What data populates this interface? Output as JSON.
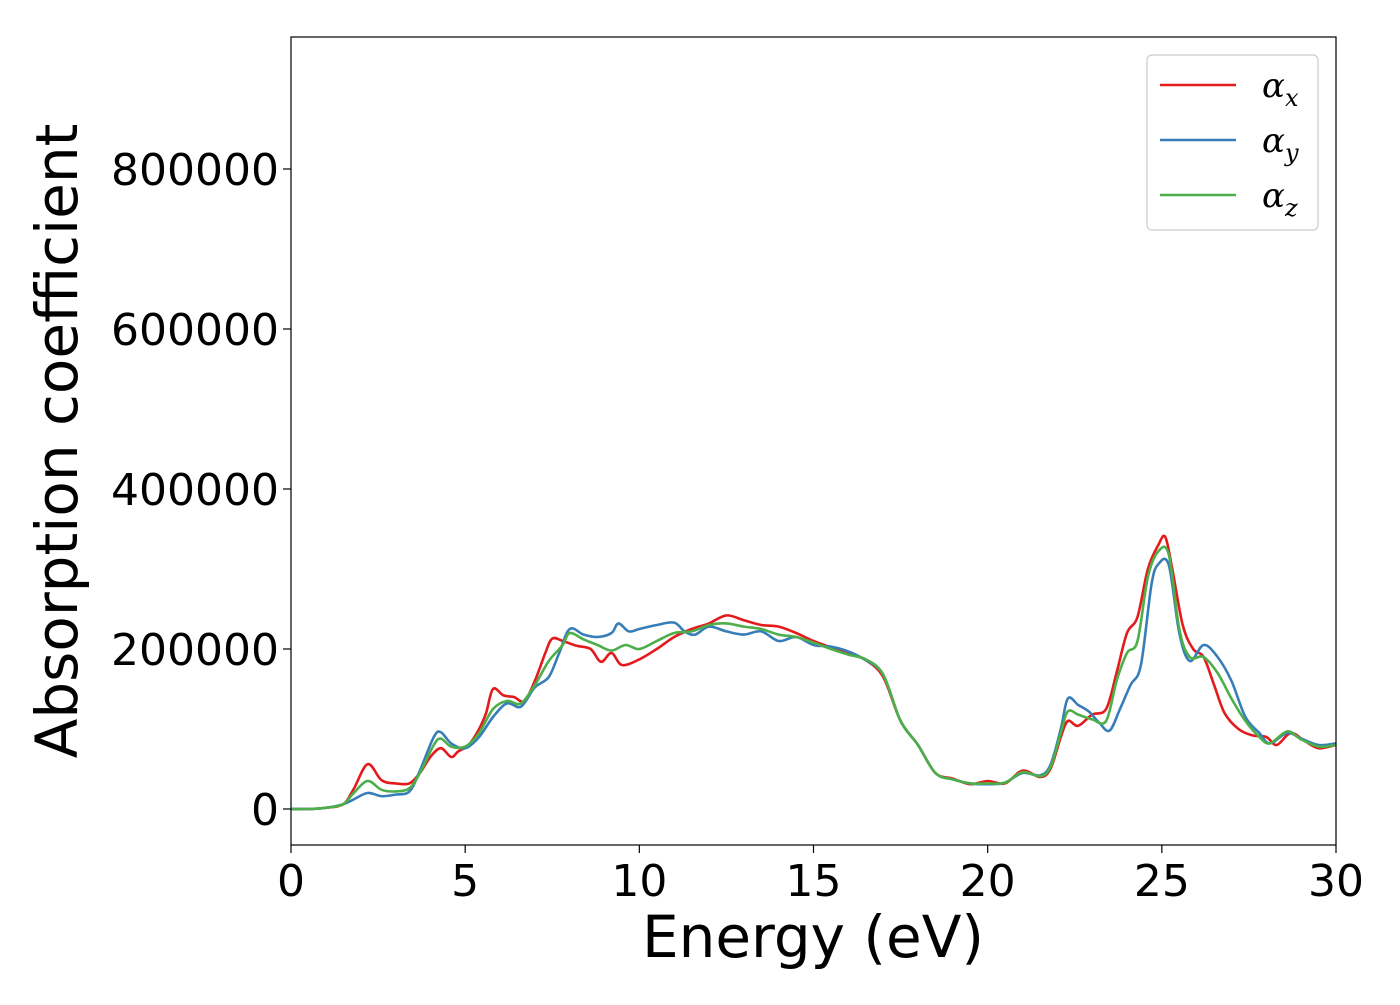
{
  "chart_data": {
    "type": "line",
    "xlabel": "Energy (eV)",
    "ylabel": "Absorption coefficient",
    "xlim": [
      0,
      30
    ],
    "ylim": [
      -45000,
      965000
    ],
    "xticks": [
      0,
      5,
      10,
      15,
      20,
      25,
      30
    ],
    "yticks": [
      0,
      200000,
      400000,
      600000,
      800000
    ],
    "grid": false,
    "legend_position": "top-right",
    "series": [
      {
        "name": "αx",
        "symbol": "α",
        "subscript": "x",
        "color": "#e41a1c",
        "points": [
          [
            0,
            0
          ],
          [
            0.5,
            0
          ],
          [
            1,
            1500
          ],
          [
            1.5,
            6000
          ],
          [
            1.8,
            25000
          ],
          [
            2.2,
            56000
          ],
          [
            2.6,
            36000
          ],
          [
            3,
            32000
          ],
          [
            3.4,
            32000
          ],
          [
            3.7,
            45000
          ],
          [
            4,
            65000
          ],
          [
            4.3,
            76000
          ],
          [
            4.6,
            65000
          ],
          [
            4.8,
            72000
          ],
          [
            5.1,
            80000
          ],
          [
            5.4,
            100000
          ],
          [
            5.6,
            120000
          ],
          [
            5.8,
            150000
          ],
          [
            6.1,
            142000
          ],
          [
            6.4,
            140000
          ],
          [
            6.7,
            135000
          ],
          [
            7,
            160000
          ],
          [
            7.3,
            195000
          ],
          [
            7.5,
            213000
          ],
          [
            7.8,
            210000
          ],
          [
            8.2,
            204000
          ],
          [
            8.6,
            200000
          ],
          [
            8.9,
            184000
          ],
          [
            9.2,
            195000
          ],
          [
            9.5,
            180000
          ],
          [
            10,
            187000
          ],
          [
            10.5,
            200000
          ],
          [
            11,
            215000
          ],
          [
            11.5,
            225000
          ],
          [
            12,
            232000
          ],
          [
            12.5,
            242000
          ],
          [
            13,
            236000
          ],
          [
            13.5,
            230000
          ],
          [
            14,
            228000
          ],
          [
            14.5,
            220000
          ],
          [
            15,
            210000
          ],
          [
            15.5,
            202000
          ],
          [
            16,
            195000
          ],
          [
            16.5,
            186000
          ],
          [
            17,
            165000
          ],
          [
            17.5,
            110000
          ],
          [
            18,
            80000
          ],
          [
            18.5,
            45000
          ],
          [
            19,
            38000
          ],
          [
            19.5,
            31000
          ],
          [
            20,
            35000
          ],
          [
            20.5,
            32000
          ],
          [
            21,
            48000
          ],
          [
            21.5,
            40000
          ],
          [
            21.8,
            50000
          ],
          [
            22.1,
            90000
          ],
          [
            22.3,
            110000
          ],
          [
            22.6,
            104000
          ],
          [
            23,
            118000
          ],
          [
            23.4,
            125000
          ],
          [
            23.7,
            170000
          ],
          [
            24,
            220000
          ],
          [
            24.3,
            240000
          ],
          [
            24.6,
            300000
          ],
          [
            24.9,
            330000
          ],
          [
            25.1,
            340000
          ],
          [
            25.3,
            300000
          ],
          [
            25.6,
            230000
          ],
          [
            25.9,
            200000
          ],
          [
            26.2,
            190000
          ],
          [
            26.5,
            155000
          ],
          [
            26.8,
            120000
          ],
          [
            27.2,
            100000
          ],
          [
            27.6,
            92000
          ],
          [
            28,
            90000
          ],
          [
            28.3,
            80000
          ],
          [
            28.7,
            95000
          ],
          [
            29.1,
            85000
          ],
          [
            29.5,
            76000
          ],
          [
            30,
            80000
          ]
        ]
      },
      {
        "name": "αy",
        "symbol": "α",
        "subscript": "y",
        "color": "#377eb8",
        "points": [
          [
            0,
            0
          ],
          [
            0.5,
            0
          ],
          [
            1,
            1500
          ],
          [
            1.5,
            6000
          ],
          [
            1.8,
            12000
          ],
          [
            2.2,
            20000
          ],
          [
            2.6,
            16000
          ],
          [
            3,
            18000
          ],
          [
            3.4,
            22000
          ],
          [
            3.7,
            48000
          ],
          [
            4.1,
            90000
          ],
          [
            4.3,
            96000
          ],
          [
            4.6,
            82000
          ],
          [
            5,
            76000
          ],
          [
            5.4,
            90000
          ],
          [
            5.8,
            115000
          ],
          [
            6.2,
            132000
          ],
          [
            6.6,
            128000
          ],
          [
            7,
            152000
          ],
          [
            7.4,
            165000
          ],
          [
            7.7,
            195000
          ],
          [
            8,
            225000
          ],
          [
            8.4,
            218000
          ],
          [
            8.8,
            215000
          ],
          [
            9.2,
            220000
          ],
          [
            9.4,
            232000
          ],
          [
            9.7,
            222000
          ],
          [
            10,
            225000
          ],
          [
            10.5,
            230000
          ],
          [
            11,
            233000
          ],
          [
            11.3,
            222000
          ],
          [
            11.6,
            218000
          ],
          [
            12,
            228000
          ],
          [
            12.5,
            222000
          ],
          [
            13,
            218000
          ],
          [
            13.5,
            222000
          ],
          [
            14,
            210000
          ],
          [
            14.5,
            215000
          ],
          [
            15,
            205000
          ],
          [
            15.5,
            203000
          ],
          [
            16,
            197000
          ],
          [
            16.5,
            186000
          ],
          [
            17,
            168000
          ],
          [
            17.5,
            110000
          ],
          [
            18,
            80000
          ],
          [
            18.5,
            45000
          ],
          [
            19,
            37000
          ],
          [
            19.5,
            32000
          ],
          [
            20,
            31000
          ],
          [
            20.5,
            33000
          ],
          [
            21,
            45000
          ],
          [
            21.5,
            42000
          ],
          [
            21.8,
            55000
          ],
          [
            22.1,
            100000
          ],
          [
            22.3,
            138000
          ],
          [
            22.6,
            130000
          ],
          [
            22.9,
            122000
          ],
          [
            23.2,
            108000
          ],
          [
            23.5,
            98000
          ],
          [
            23.8,
            125000
          ],
          [
            24.1,
            155000
          ],
          [
            24.4,
            180000
          ],
          [
            24.7,
            280000
          ],
          [
            24.9,
            306000
          ],
          [
            25.2,
            305000
          ],
          [
            25.5,
            220000
          ],
          [
            25.8,
            185000
          ],
          [
            26.2,
            205000
          ],
          [
            26.6,
            190000
          ],
          [
            27,
            160000
          ],
          [
            27.4,
            115000
          ],
          [
            27.8,
            95000
          ],
          [
            28.1,
            82000
          ],
          [
            28.6,
            95000
          ],
          [
            29,
            88000
          ],
          [
            29.5,
            80000
          ],
          [
            30,
            82000
          ]
        ]
      },
      {
        "name": "αz",
        "symbol": "α",
        "subscript": "z",
        "color": "#4daf4a",
        "points": [
          [
            0,
            0
          ],
          [
            0.5,
            0
          ],
          [
            1,
            1500
          ],
          [
            1.5,
            6000
          ],
          [
            1.8,
            20000
          ],
          [
            2.2,
            35000
          ],
          [
            2.6,
            24000
          ],
          [
            3,
            22000
          ],
          [
            3.4,
            26000
          ],
          [
            3.7,
            45000
          ],
          [
            4.1,
            80000
          ],
          [
            4.3,
            88000
          ],
          [
            4.6,
            78000
          ],
          [
            5,
            78000
          ],
          [
            5.4,
            95000
          ],
          [
            5.8,
            125000
          ],
          [
            6.2,
            135000
          ],
          [
            6.6,
            132000
          ],
          [
            7,
            155000
          ],
          [
            7.4,
            185000
          ],
          [
            7.8,
            205000
          ],
          [
            8,
            220000
          ],
          [
            8.4,
            212000
          ],
          [
            8.8,
            205000
          ],
          [
            9.2,
            198000
          ],
          [
            9.6,
            205000
          ],
          [
            10,
            200000
          ],
          [
            10.5,
            210000
          ],
          [
            11,
            220000
          ],
          [
            11.5,
            222000
          ],
          [
            12,
            230000
          ],
          [
            12.5,
            232000
          ],
          [
            13,
            228000
          ],
          [
            13.5,
            225000
          ],
          [
            14,
            218000
          ],
          [
            14.5,
            215000
          ],
          [
            15,
            208000
          ],
          [
            15.5,
            200000
          ],
          [
            16,
            193000
          ],
          [
            16.5,
            187000
          ],
          [
            17,
            168000
          ],
          [
            17.5,
            110000
          ],
          [
            18,
            80000
          ],
          [
            18.5,
            45000
          ],
          [
            19,
            37000
          ],
          [
            19.5,
            32000
          ],
          [
            20,
            32000
          ],
          [
            20.5,
            33000
          ],
          [
            21,
            46000
          ],
          [
            21.5,
            41000
          ],
          [
            21.8,
            52000
          ],
          [
            22.1,
            95000
          ],
          [
            22.3,
            122000
          ],
          [
            22.6,
            118000
          ],
          [
            23,
            112000
          ],
          [
            23.4,
            110000
          ],
          [
            23.7,
            160000
          ],
          [
            24,
            195000
          ],
          [
            24.3,
            210000
          ],
          [
            24.6,
            290000
          ],
          [
            24.9,
            322000
          ],
          [
            25.2,
            318000
          ],
          [
            25.5,
            225000
          ],
          [
            25.8,
            190000
          ],
          [
            26.2,
            190000
          ],
          [
            26.6,
            170000
          ],
          [
            27,
            138000
          ],
          [
            27.4,
            110000
          ],
          [
            27.8,
            90000
          ],
          [
            28.1,
            82000
          ],
          [
            28.6,
            97000
          ],
          [
            29,
            87000
          ],
          [
            29.5,
            78000
          ],
          [
            30,
            80000
          ]
        ]
      }
    ]
  }
}
